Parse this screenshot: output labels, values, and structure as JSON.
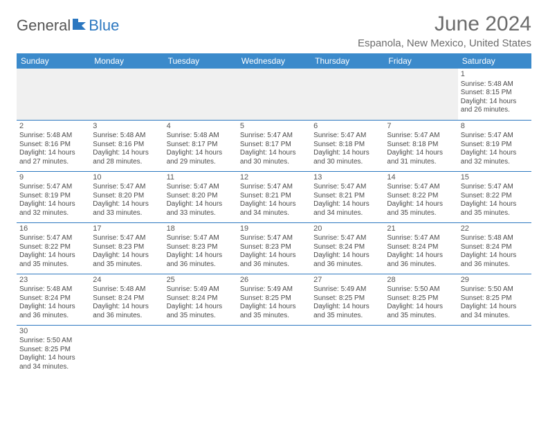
{
  "logo": {
    "part1": "General",
    "part2": "Blue"
  },
  "title": "June 2024",
  "location": "Espanola, New Mexico, United States",
  "colors": {
    "header_bg": "#3b8acb",
    "header_text": "#ffffff",
    "rule": "#2b77c0",
    "text": "#4a4a4a",
    "title_text": "#6b6b6b",
    "empty_bg": "#f0f0f0"
  },
  "day_names": [
    "Sunday",
    "Monday",
    "Tuesday",
    "Wednesday",
    "Thursday",
    "Friday",
    "Saturday"
  ],
  "weeks": [
    [
      null,
      null,
      null,
      null,
      null,
      null,
      {
        "n": "1",
        "sunrise": "Sunrise: 5:48 AM",
        "sunset": "Sunset: 8:15 PM",
        "daylight": "Daylight: 14 hours and 26 minutes."
      }
    ],
    [
      {
        "n": "2",
        "sunrise": "Sunrise: 5:48 AM",
        "sunset": "Sunset: 8:16 PM",
        "daylight": "Daylight: 14 hours and 27 minutes."
      },
      {
        "n": "3",
        "sunrise": "Sunrise: 5:48 AM",
        "sunset": "Sunset: 8:16 PM",
        "daylight": "Daylight: 14 hours and 28 minutes."
      },
      {
        "n": "4",
        "sunrise": "Sunrise: 5:48 AM",
        "sunset": "Sunset: 8:17 PM",
        "daylight": "Daylight: 14 hours and 29 minutes."
      },
      {
        "n": "5",
        "sunrise": "Sunrise: 5:47 AM",
        "sunset": "Sunset: 8:17 PM",
        "daylight": "Daylight: 14 hours and 30 minutes."
      },
      {
        "n": "6",
        "sunrise": "Sunrise: 5:47 AM",
        "sunset": "Sunset: 8:18 PM",
        "daylight": "Daylight: 14 hours and 30 minutes."
      },
      {
        "n": "7",
        "sunrise": "Sunrise: 5:47 AM",
        "sunset": "Sunset: 8:18 PM",
        "daylight": "Daylight: 14 hours and 31 minutes."
      },
      {
        "n": "8",
        "sunrise": "Sunrise: 5:47 AM",
        "sunset": "Sunset: 8:19 PM",
        "daylight": "Daylight: 14 hours and 32 minutes."
      }
    ],
    [
      {
        "n": "9",
        "sunrise": "Sunrise: 5:47 AM",
        "sunset": "Sunset: 8:19 PM",
        "daylight": "Daylight: 14 hours and 32 minutes."
      },
      {
        "n": "10",
        "sunrise": "Sunrise: 5:47 AM",
        "sunset": "Sunset: 8:20 PM",
        "daylight": "Daylight: 14 hours and 33 minutes."
      },
      {
        "n": "11",
        "sunrise": "Sunrise: 5:47 AM",
        "sunset": "Sunset: 8:20 PM",
        "daylight": "Daylight: 14 hours and 33 minutes."
      },
      {
        "n": "12",
        "sunrise": "Sunrise: 5:47 AM",
        "sunset": "Sunset: 8:21 PM",
        "daylight": "Daylight: 14 hours and 34 minutes."
      },
      {
        "n": "13",
        "sunrise": "Sunrise: 5:47 AM",
        "sunset": "Sunset: 8:21 PM",
        "daylight": "Daylight: 14 hours and 34 minutes."
      },
      {
        "n": "14",
        "sunrise": "Sunrise: 5:47 AM",
        "sunset": "Sunset: 8:22 PM",
        "daylight": "Daylight: 14 hours and 35 minutes."
      },
      {
        "n": "15",
        "sunrise": "Sunrise: 5:47 AM",
        "sunset": "Sunset: 8:22 PM",
        "daylight": "Daylight: 14 hours and 35 minutes."
      }
    ],
    [
      {
        "n": "16",
        "sunrise": "Sunrise: 5:47 AM",
        "sunset": "Sunset: 8:22 PM",
        "daylight": "Daylight: 14 hours and 35 minutes."
      },
      {
        "n": "17",
        "sunrise": "Sunrise: 5:47 AM",
        "sunset": "Sunset: 8:23 PM",
        "daylight": "Daylight: 14 hours and 35 minutes."
      },
      {
        "n": "18",
        "sunrise": "Sunrise: 5:47 AM",
        "sunset": "Sunset: 8:23 PM",
        "daylight": "Daylight: 14 hours and 36 minutes."
      },
      {
        "n": "19",
        "sunrise": "Sunrise: 5:47 AM",
        "sunset": "Sunset: 8:23 PM",
        "daylight": "Daylight: 14 hours and 36 minutes."
      },
      {
        "n": "20",
        "sunrise": "Sunrise: 5:47 AM",
        "sunset": "Sunset: 8:24 PM",
        "daylight": "Daylight: 14 hours and 36 minutes."
      },
      {
        "n": "21",
        "sunrise": "Sunrise: 5:47 AM",
        "sunset": "Sunset: 8:24 PM",
        "daylight": "Daylight: 14 hours and 36 minutes."
      },
      {
        "n": "22",
        "sunrise": "Sunrise: 5:48 AM",
        "sunset": "Sunset: 8:24 PM",
        "daylight": "Daylight: 14 hours and 36 minutes."
      }
    ],
    [
      {
        "n": "23",
        "sunrise": "Sunrise: 5:48 AM",
        "sunset": "Sunset: 8:24 PM",
        "daylight": "Daylight: 14 hours and 36 minutes."
      },
      {
        "n": "24",
        "sunrise": "Sunrise: 5:48 AM",
        "sunset": "Sunset: 8:24 PM",
        "daylight": "Daylight: 14 hours and 36 minutes."
      },
      {
        "n": "25",
        "sunrise": "Sunrise: 5:49 AM",
        "sunset": "Sunset: 8:24 PM",
        "daylight": "Daylight: 14 hours and 35 minutes."
      },
      {
        "n": "26",
        "sunrise": "Sunrise: 5:49 AM",
        "sunset": "Sunset: 8:25 PM",
        "daylight": "Daylight: 14 hours and 35 minutes."
      },
      {
        "n": "27",
        "sunrise": "Sunrise: 5:49 AM",
        "sunset": "Sunset: 8:25 PM",
        "daylight": "Daylight: 14 hours and 35 minutes."
      },
      {
        "n": "28",
        "sunrise": "Sunrise: 5:50 AM",
        "sunset": "Sunset: 8:25 PM",
        "daylight": "Daylight: 14 hours and 35 minutes."
      },
      {
        "n": "29",
        "sunrise": "Sunrise: 5:50 AM",
        "sunset": "Sunset: 8:25 PM",
        "daylight": "Daylight: 14 hours and 34 minutes."
      }
    ],
    [
      {
        "n": "30",
        "sunrise": "Sunrise: 5:50 AM",
        "sunset": "Sunset: 8:25 PM",
        "daylight": "Daylight: 14 hours and 34 minutes."
      },
      null,
      null,
      null,
      null,
      null,
      null
    ]
  ]
}
